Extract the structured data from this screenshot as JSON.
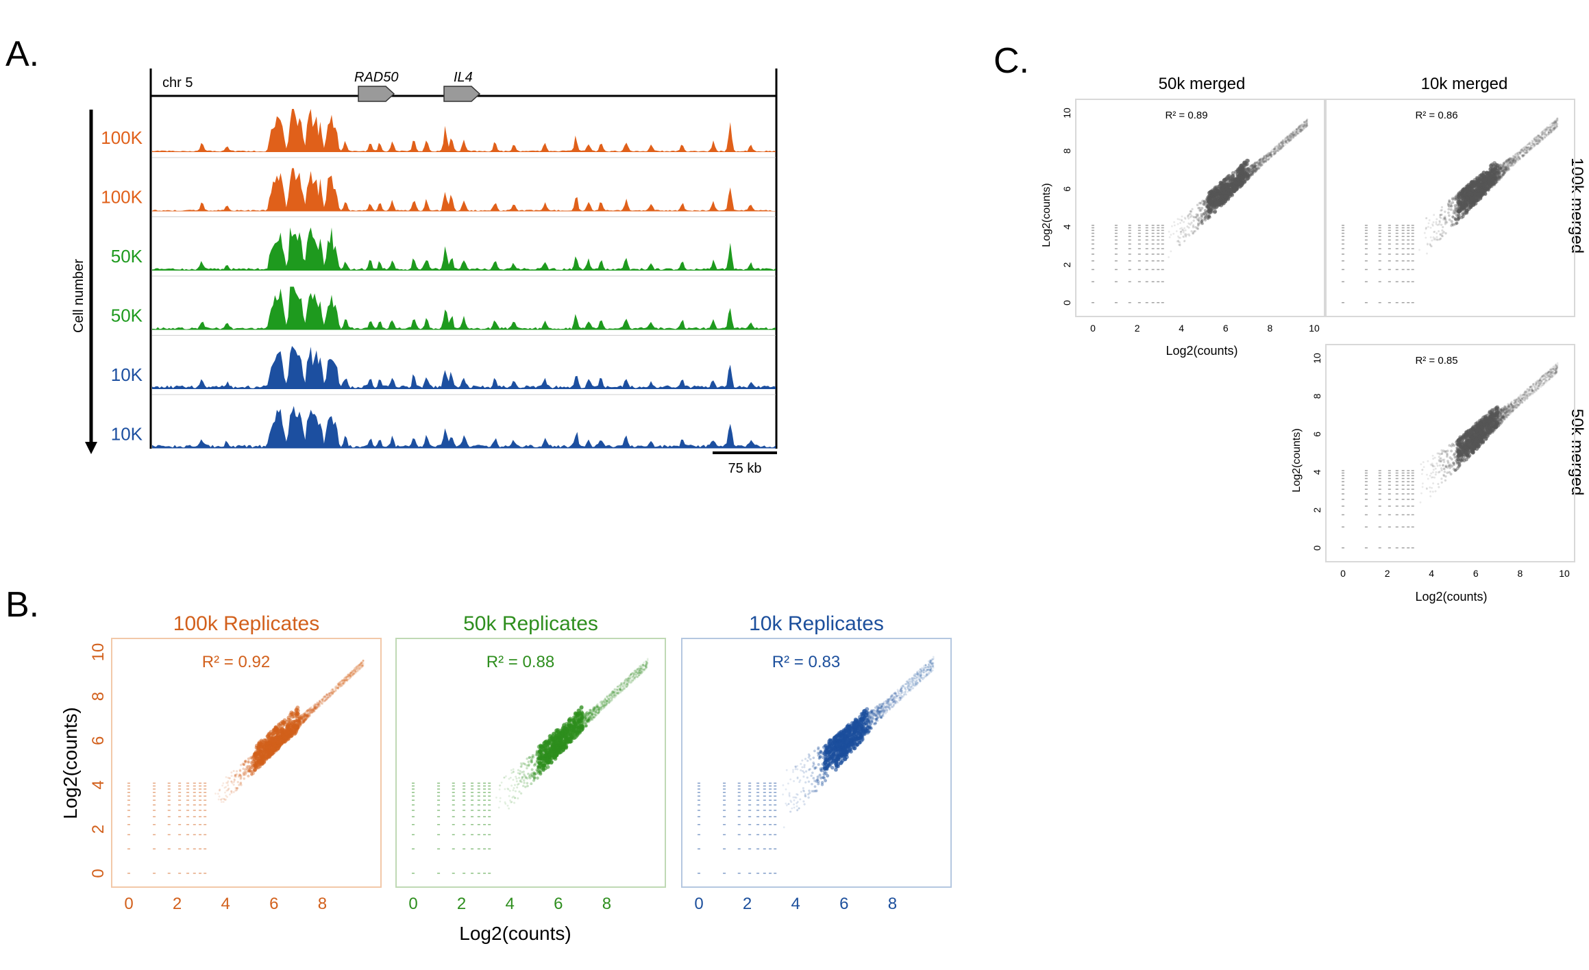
{
  "panel_labels": {
    "a": "A.",
    "b": "B.",
    "c": "C."
  },
  "panel_a": {
    "chrom_label": "chr 5",
    "genes": [
      "RAD50",
      "IL4"
    ],
    "axis_label": "Cell number",
    "scale_label": "75 kb",
    "tracks": [
      {
        "label": "100K",
        "color": "#E0601A"
      },
      {
        "label": "100K",
        "color": "#E0601A"
      },
      {
        "label": "50K",
        "color": "#1E9A1E"
      },
      {
        "label": "50K",
        "color": "#1E9A1E"
      },
      {
        "label": "10K",
        "color": "#1C4FA0"
      },
      {
        "label": "10K",
        "color": "#1C4FA0"
      }
    ]
  },
  "panel_b": {
    "xlabel": "Log2(counts)",
    "ylabel": "Log2(counts)",
    "plots": [
      {
        "title": "100k Replicates",
        "r2_label": "R² = 0.92",
        "color": "#D2601C",
        "frame_color": "#F2C8A8"
      },
      {
        "title": "50k Replicates",
        "r2_label": "R² = 0.88",
        "color": "#2E8E1E",
        "frame_color": "#BFD9B4"
      },
      {
        "title": "10k Replicates",
        "r2_label": "R² = 0.83",
        "color": "#1C4F9C",
        "frame_color": "#B4C7E0"
      }
    ]
  },
  "panel_c": {
    "xlabel": "Log2(counts)",
    "ylabel": "Log2(counts)",
    "col_titles": [
      "50k merged",
      "10k merged"
    ],
    "row_titles": [
      "100k merged",
      "50k merged"
    ],
    "plots": [
      {
        "r2_label": "R² = 0.89"
      },
      {
        "r2_label": "R² = 0.86"
      },
      {
        "r2_label": "R² = 0.85"
      }
    ]
  },
  "chart_data": [
    {
      "type": "scatter",
      "title": "100k Replicates",
      "xlabel": "Log2(counts)",
      "ylabel": "Log2(counts)",
      "xlim": [
        0,
        10
      ],
      "ylim": [
        0,
        10
      ],
      "xticks": [
        0,
        2,
        4,
        6,
        8
      ],
      "yticks": [
        0,
        2,
        4,
        6,
        8,
        10
      ],
      "annotation": "R² = 0.92",
      "r_squared": 0.92,
      "density_peak": [
        6,
        6
      ]
    },
    {
      "type": "scatter",
      "title": "50k Replicates",
      "xlabel": "Log2(counts)",
      "ylabel": "Log2(counts)",
      "xlim": [
        0,
        10
      ],
      "ylim": [
        0,
        10
      ],
      "xticks": [
        0,
        2,
        4,
        6,
        8
      ],
      "annotation": "R² = 0.88",
      "r_squared": 0.88,
      "density_peak": [
        6,
        6
      ]
    },
    {
      "type": "scatter",
      "title": "10k Replicates",
      "xlabel": "Log2(counts)",
      "ylabel": "Log2(counts)",
      "xlim": [
        0,
        10
      ],
      "ylim": [
        0,
        10
      ],
      "xticks": [
        0,
        2,
        4,
        6,
        8
      ],
      "annotation": "R² = 0.83",
      "r_squared": 0.83,
      "density_peak": [
        5.6,
        5.6
      ]
    },
    {
      "type": "scatter",
      "title": "50k merged",
      "row": "100k merged",
      "xlabel": "Log2(counts)",
      "ylabel": "Log2(counts)",
      "xlim": [
        0,
        10
      ],
      "ylim": [
        0,
        10
      ],
      "xticks": [
        0,
        2,
        4,
        6,
        8,
        10
      ],
      "yticks": [
        0,
        2,
        4,
        6,
        8,
        10
      ],
      "annotation": "R² = 0.89",
      "r_squared": 0.89,
      "density_peak": [
        6.3,
        6.3
      ]
    },
    {
      "type": "scatter",
      "title": "10k merged",
      "row": "100k merged",
      "xlim": [
        0,
        10
      ],
      "ylim": [
        0,
        10
      ],
      "annotation": "R² = 0.86",
      "r_squared": 0.86,
      "density_peak": [
        6,
        6
      ]
    },
    {
      "type": "scatter",
      "title": "10k merged",
      "row": "50k merged",
      "xlabel": "Log2(counts)",
      "ylabel": "Log2(counts)",
      "xlim": [
        0,
        10
      ],
      "ylim": [
        0,
        10
      ],
      "xticks": [
        0,
        2,
        4,
        6,
        8,
        10
      ],
      "yticks": [
        0,
        2,
        4,
        6,
        8,
        10
      ],
      "annotation": "R² = 0.85",
      "r_squared": 0.85,
      "density_peak": [
        6,
        6
      ]
    }
  ]
}
